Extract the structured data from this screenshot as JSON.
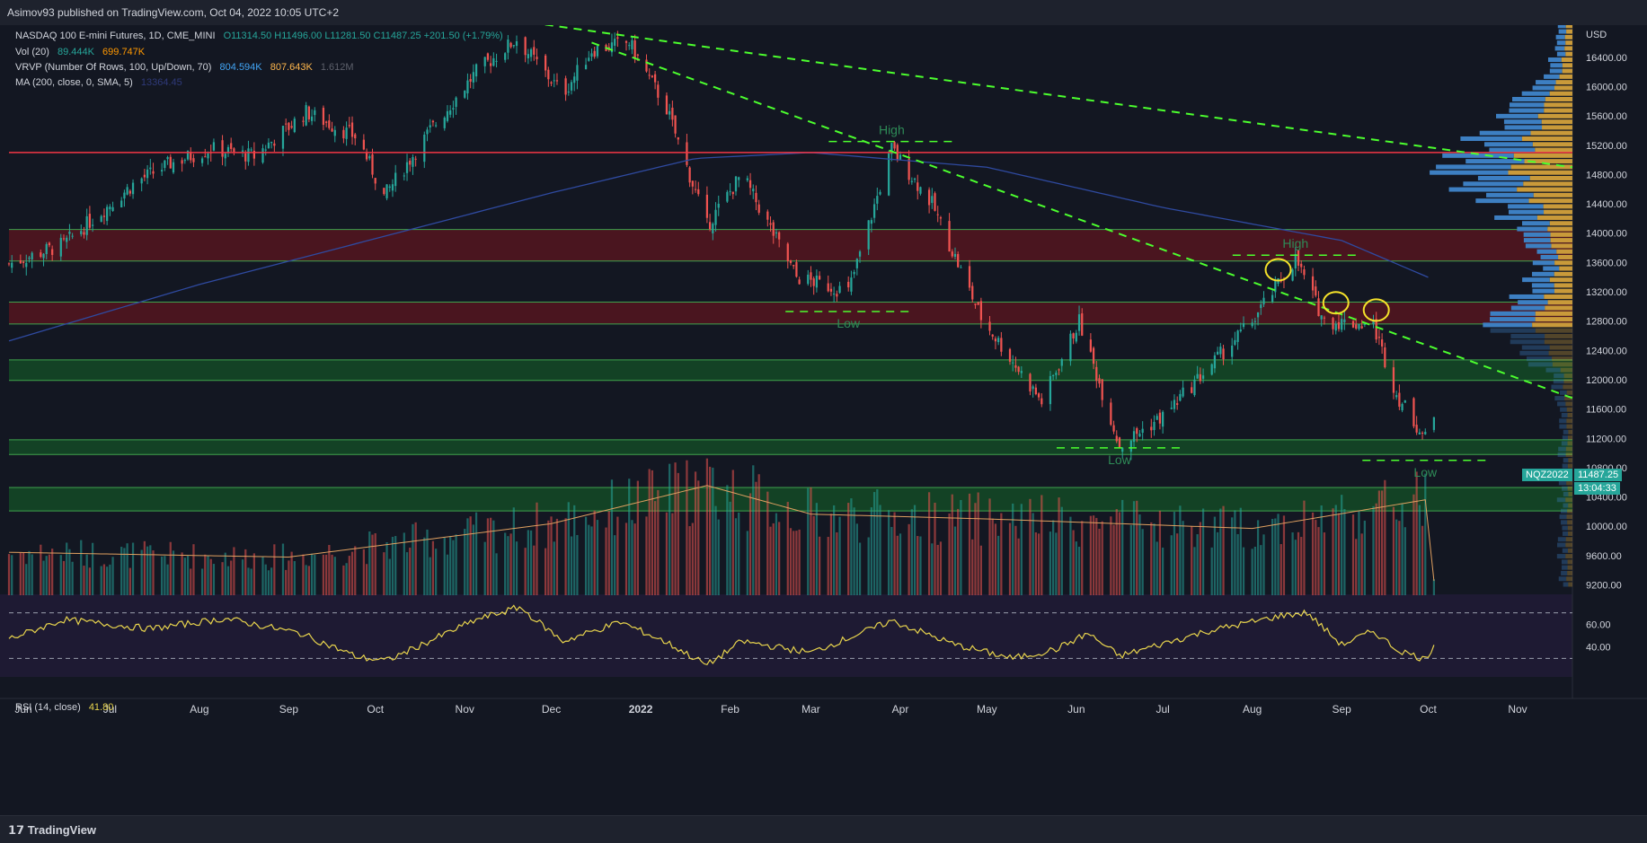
{
  "header": {
    "publish_line": "Asimov93 published on TradingView.com, Oct 04, 2022 10:05 UTC+2"
  },
  "legend": {
    "symbol": "NASDAQ 100 E-mini Futures, 1D, CME_MINI",
    "ohlc": "O11314.50  H11496.00  L11281.50  C11487.25  +201.50 (+1.79%)",
    "vol_label": "Vol (20)",
    "vol_a": "89.444K",
    "vol_b": "699.747K",
    "vrvp_label": "VRVP (Number Of Rows, 100, Up/Down, 70)",
    "vrvp_a": "804.594K",
    "vrvp_b": "807.643K",
    "vrvp_c": "1.612M",
    "ma_label": "MA (200, close, 0, SMA, 5)",
    "ma_value": "13364.45",
    "rsi_label": "RSI (14, close)",
    "rsi_value": "41.80"
  },
  "price_axis": {
    "currency": "USD",
    "ticks": [
      "16400.00",
      "16000.00",
      "15600.00",
      "15200.00",
      "14800.00",
      "14400.00",
      "14000.00",
      "13600.00",
      "13200.00",
      "12800.00",
      "12400.00",
      "12000.00",
      "11600.00",
      "11200.00",
      "10800.00",
      "10400.00",
      "10000.00",
      "9600.00",
      "9200.00"
    ]
  },
  "rsi_axis": {
    "ticks": [
      "60.00",
      "40.00"
    ]
  },
  "time_axis": {
    "labels": [
      "Jun",
      "Jul",
      "Aug",
      "Sep",
      "Oct",
      "Nov",
      "Dec",
      "2022",
      "Feb",
      "Mar",
      "Apr",
      "May",
      "Jun",
      "Jul",
      "Aug",
      "Sep",
      "Oct",
      "Nov"
    ]
  },
  "price_badge": {
    "symbol": "NQZ2022",
    "price": "11487.25",
    "countdown": "13:04:33"
  },
  "annotations": [
    "High",
    "Low",
    "High",
    "Low",
    "Low"
  ],
  "footer": {
    "brand": "TradingView"
  },
  "colors": {
    "up": "#26a69a",
    "down": "#ef5350",
    "trend": "#4cff2e",
    "resistance": "#f23645",
    "ma": "#2962ff",
    "rsi": "#e8d44d"
  },
  "chart_data": {
    "type": "candlestick",
    "title": "NASDAQ 100 E-mini Futures, 1D, CME_MINI",
    "ylim": [
      8900,
      16900
    ],
    "x_range": [
      "2021-05-27",
      "2022-11-20"
    ],
    "last": {
      "open": 11314.5,
      "high": 11496.0,
      "low": 11281.5,
      "close": 11487.25,
      "change": 201.5,
      "change_pct": 1.79
    },
    "price_path": [
      [
        "2021-05-27",
        13580
      ],
      [
        "2021-06-15",
        13850
      ],
      [
        "2021-07-10",
        14700
      ],
      [
        "2021-07-22",
        14950
      ],
      [
        "2021-08-05",
        15150
      ],
      [
        "2021-08-20",
        15050
      ],
      [
        "2021-09-07",
        15650
      ],
      [
        "2021-09-25",
        15300
      ],
      [
        "2021-10-04",
        14500
      ],
      [
        "2021-10-20",
        15400
      ],
      [
        "2021-11-05",
        16200
      ],
      [
        "2021-11-19",
        16650
      ],
      [
        "2021-12-05",
        15900
      ],
      [
        "2021-12-15",
        16500
      ],
      [
        "2021-12-28",
        16600
      ],
      [
        "2022-01-10",
        15700
      ],
      [
        "2022-01-24",
        14100
      ],
      [
        "2022-02-05",
        14800
      ],
      [
        "2022-02-24",
        13400
      ],
      [
        "2022-03-14",
        13200
      ],
      [
        "2022-03-29",
        15150
      ],
      [
        "2022-04-12",
        14400
      ],
      [
        "2022-04-29",
        12850
      ],
      [
        "2022-05-20",
        11700
      ],
      [
        "2022-06-02",
        12800
      ],
      [
        "2022-06-16",
        11100
      ],
      [
        "2022-07-01",
        11500
      ],
      [
        "2022-07-20",
        12300
      ],
      [
        "2022-08-01",
        12800
      ],
      [
        "2022-08-16",
        13650
      ],
      [
        "2022-08-26",
        12800
      ],
      [
        "2022-09-12",
        12750
      ],
      [
        "2022-09-20",
        11800
      ],
      [
        "2022-09-30",
        11200
      ],
      [
        "2022-10-03",
        11487
      ]
    ],
    "volume_path": [
      [
        "2021-05-27",
        90
      ],
      [
        "2021-09-01",
        80
      ],
      [
        "2021-12-01",
        150
      ],
      [
        "2022-01-24",
        230
      ],
      [
        "2022-03-01",
        170
      ],
      [
        "2022-05-01",
        160
      ],
      [
        "2022-08-01",
        140
      ],
      [
        "2022-09-30",
        200
      ],
      [
        "2022-10-03",
        30
      ]
    ],
    "ma200_path": [
      [
        "2021-05-27",
        12530
      ],
      [
        "2021-08-01",
        13300
      ],
      [
        "2021-12-01",
        14550
      ],
      [
        "2022-01-20",
        15020
      ],
      [
        "2022-03-01",
        15100
      ],
      [
        "2022-05-01",
        14900
      ],
      [
        "2022-07-01",
        14350
      ],
      [
        "2022-09-01",
        13900
      ],
      [
        "2022-10-03",
        13364.45
      ]
    ],
    "rsi_path": [
      [
        "2021-05-27",
        47
      ],
      [
        "2021-06-15",
        64
      ],
      [
        "2021-07-15",
        56
      ],
      [
        "2021-08-10",
        65
      ],
      [
        "2021-09-05",
        52
      ],
      [
        "2021-09-25",
        31
      ],
      [
        "2021-10-05",
        28
      ],
      [
        "2021-11-05",
        64
      ],
      [
        "2021-11-20",
        75
      ],
      [
        "2021-12-05",
        45
      ],
      [
        "2021-12-25",
        62
      ],
      [
        "2022-01-10",
        44
      ],
      [
        "2022-01-24",
        24
      ],
      [
        "2022-02-05",
        45
      ],
      [
        "2022-03-01",
        35
      ],
      [
        "2022-03-29",
        63
      ],
      [
        "2022-04-20",
        42
      ],
      [
        "2022-05-10",
        30
      ],
      [
        "2022-05-25",
        38
      ],
      [
        "2022-06-05",
        52
      ],
      [
        "2022-06-16",
        32
      ],
      [
        "2022-07-15",
        53
      ],
      [
        "2022-08-12",
        68
      ],
      [
        "2022-08-20",
        70
      ],
      [
        "2022-09-01",
        42
      ],
      [
        "2022-09-12",
        54
      ],
      [
        "2022-09-20",
        38
      ],
      [
        "2022-09-30",
        29
      ],
      [
        "2022-10-03",
        41.8
      ]
    ],
    "horizontal_levels": [
      15100
    ],
    "zones": [
      {
        "from": 13620,
        "to": 14050,
        "color": "red"
      },
      {
        "from": 12760,
        "to": 13060,
        "color": "red"
      },
      {
        "from": 11990,
        "to": 12270,
        "color": "green"
      },
      {
        "from": 10980,
        "to": 11180,
        "color": "green"
      },
      {
        "from": 10210,
        "to": 10530,
        "color": "green"
      }
    ],
    "trendlines": [
      {
        "from": [
          "2021-11-19",
          16900
        ],
        "to": [
          "2022-11-20",
          14900
        ]
      },
      {
        "from": [
          "2021-12-15",
          16600
        ],
        "to": [
          "2022-11-20",
          11750
        ]
      }
    ],
    "pivot_lines": [
      {
        "label": "High",
        "date": "2022-03-29",
        "price": 15250
      },
      {
        "label": "Low",
        "date": "2022-03-14",
        "price": 12930
      },
      {
        "label": "High",
        "date": "2022-08-16",
        "price": 13700
      },
      {
        "label": "Low",
        "date": "2022-06-16",
        "price": 11070
      },
      {
        "label": "Low",
        "date": "2022-09-30",
        "price": 10900
      }
    ],
    "rsi_levels": [
      70,
      30
    ]
  }
}
